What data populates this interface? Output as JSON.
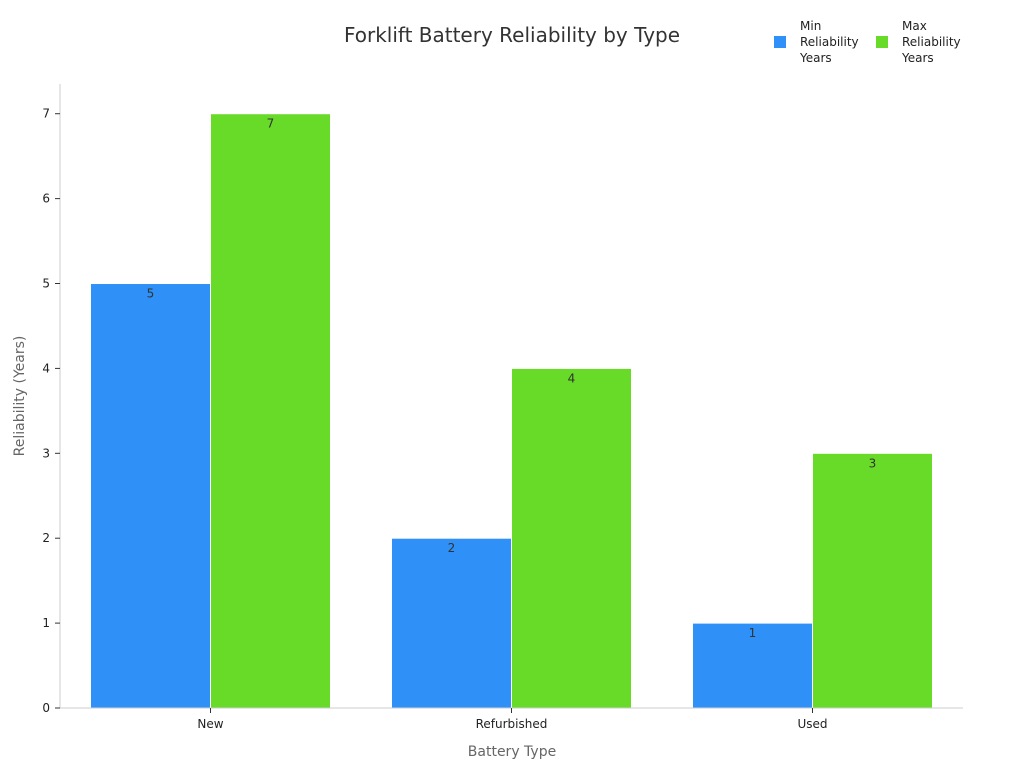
{
  "chart_data": {
    "type": "bar",
    "title": "Forklift Battery Reliability by Type",
    "xlabel": "Battery Type",
    "ylabel": "Reliability (Years)",
    "categories": [
      "New",
      "Refurbished",
      "Used"
    ],
    "series": [
      {
        "name": "Min Reliability Years",
        "values": [
          5,
          2,
          1
        ],
        "color": "#2f91f7"
      },
      {
        "name": "Max Reliability Years",
        "values": [
          7,
          4,
          3
        ],
        "color": "#67db27"
      }
    ],
    "ylim": [
      0,
      7.35
    ],
    "yticks": [
      0,
      1,
      2,
      3,
      4,
      5,
      6,
      7
    ],
    "grid": false,
    "legend_position": "top-right",
    "data_labels": true
  }
}
